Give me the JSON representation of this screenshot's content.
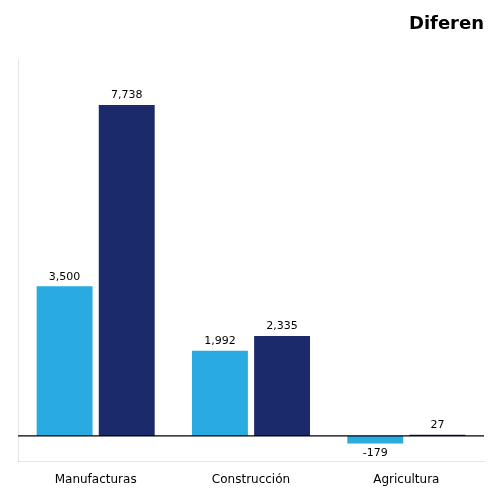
{
  "chart_data": {
    "type": "bar",
    "title": "Diferen",
    "categories": [
      "Manufacturas",
      "Construcción",
      "Agricultura"
    ],
    "series": [
      {
        "color": "#29ABE2",
        "values": [
          3500,
          1992,
          -179
        ],
        "value_labels": [
          "3,500",
          "1,992",
          "-179"
        ]
      },
      {
        "color": "#1B2A6B",
        "values": [
          7738,
          2335,
          27
        ],
        "value_labels": [
          "7,738",
          "2,335",
          "27"
        ]
      }
    ],
    "ylim": [
      -600,
      8800
    ],
    "grid": false,
    "data_labels": true,
    "tick_labels": "x"
  }
}
